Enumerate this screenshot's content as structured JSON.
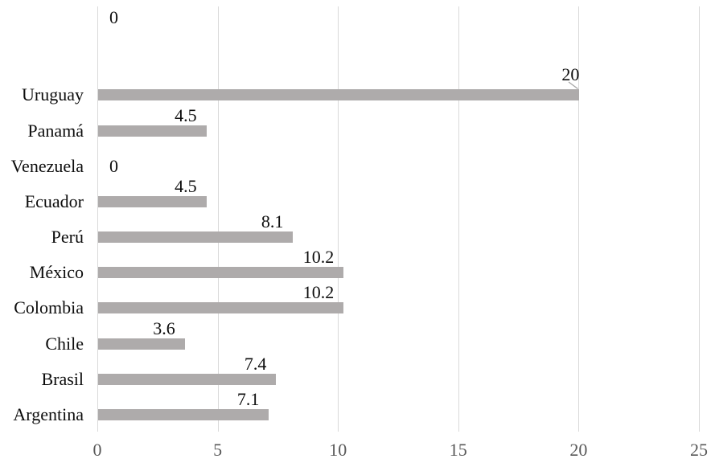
{
  "chart_data": {
    "type": "bar",
    "orientation": "horizontal",
    "title": "",
    "xlabel": "",
    "ylabel": "",
    "x_axis": {
      "min": 0,
      "max": 25,
      "tick_values": [
        0,
        5,
        10,
        15,
        20,
        25
      ],
      "tick_labels": [
        "0",
        "5",
        "10",
        "15",
        "20",
        "25"
      ],
      "gridlines": true
    },
    "rows": [
      {
        "label": "",
        "value": 0,
        "value_label": "0",
        "leader_line": false
      },
      {
        "label": "",
        "value": null,
        "value_label": "",
        "leader_line": false
      },
      {
        "label": "Uruguay",
        "value": 20,
        "value_label": "20",
        "leader_line": true
      },
      {
        "label": "Panamá",
        "value": 4.5,
        "value_label": "4.5",
        "leader_line": false
      },
      {
        "label": "Venezuela",
        "value": 0,
        "value_label": "0",
        "leader_line": false
      },
      {
        "label": "Ecuador",
        "value": 4.5,
        "value_label": "4.5",
        "leader_line": false
      },
      {
        "label": "Perú",
        "value": 8.1,
        "value_label": "8.1",
        "leader_line": false
      },
      {
        "label": "México",
        "value": 10.2,
        "value_label": "10.2",
        "leader_line": false
      },
      {
        "label": "Colombia",
        "value": 10.2,
        "value_label": "10.2",
        "leader_line": false
      },
      {
        "label": "Chile",
        "value": 3.6,
        "value_label": "3.6",
        "leader_line": false
      },
      {
        "label": "Brasil",
        "value": 7.4,
        "value_label": "7.4",
        "leader_line": false
      },
      {
        "label": "Argentina",
        "value": 7.1,
        "value_label": "7.1",
        "leader_line": false
      }
    ],
    "legend": null,
    "colors": {
      "bar": "#aeabab",
      "gridline": "#d9d9d9",
      "axis_tick_text": "#595959",
      "label_text": "#0d0d0d",
      "leader_line": "#a6a6a6",
      "background": "#ffffff"
    }
  }
}
